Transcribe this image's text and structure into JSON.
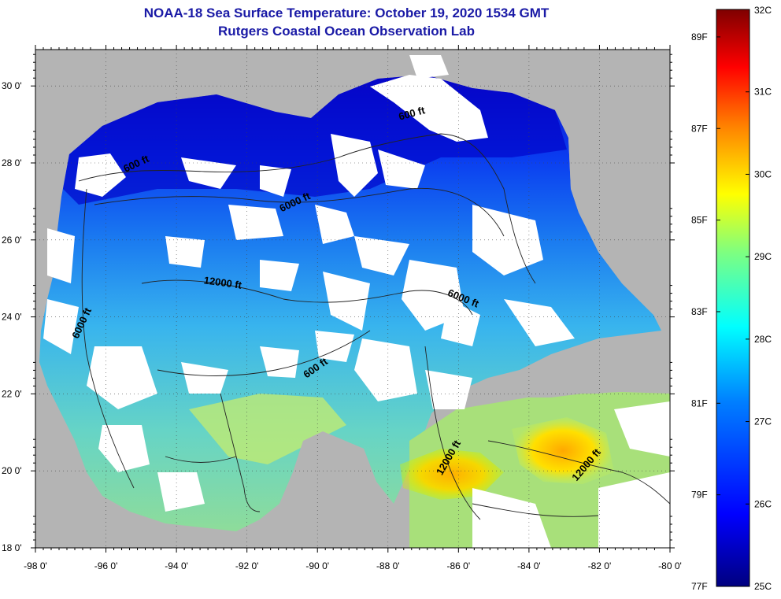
{
  "header": {
    "title": "NOAA-18 Sea Surface Temperature:  October 19, 2020 1534 GMT",
    "subtitle": "Rutgers Coastal Ocean Observation Lab"
  },
  "map": {
    "lon_labels": [
      "-98 0'",
      "-96 0'",
      "-94 0'",
      "-92 0'",
      "-90 0'",
      "-88 0'",
      "-86 0'",
      "-84 0'",
      "-82 0'",
      "-80 0'"
    ],
    "lat_labels": [
      "30 0'",
      "28 0'",
      "26 0'",
      "24 0'",
      "22 0'",
      "20 0'",
      "18 0'"
    ],
    "lon_range": [
      -98,
      -80
    ],
    "lat_range": [
      18,
      31
    ],
    "gridlines": true,
    "land_color": "#b4b4b4",
    "cloud_color": "#ffffff",
    "contour_labels": [
      {
        "text": "600 ft",
        "lon": -95.1,
        "lat": 27.9,
        "angle": -25
      },
      {
        "text": "600 ft",
        "lon": -87.3,
        "lat": 29.2,
        "angle": -15
      },
      {
        "text": "6000 ft",
        "lon": -90.6,
        "lat": 26.9,
        "angle": -25
      },
      {
        "text": "12000 ft",
        "lon": -92.7,
        "lat": 24.8,
        "angle": 8
      },
      {
        "text": "6000 ft",
        "lon": -85.9,
        "lat": 24.4,
        "angle": 22
      },
      {
        "text": "6000 ft",
        "lon": -96.6,
        "lat": 23.8,
        "angle": -65
      },
      {
        "text": "600 ft",
        "lon": -90.0,
        "lat": 22.6,
        "angle": -35
      },
      {
        "text": "12000 ft",
        "lon": -86.2,
        "lat": 20.3,
        "angle": -60
      },
      {
        "text": "12000 ft",
        "lon": -82.3,
        "lat": 20.1,
        "angle": -50
      }
    ]
  },
  "colorbar": {
    "celsius_labels": [
      "32C",
      "31C",
      "30C",
      "29C",
      "28C",
      "27C",
      "26C",
      "25C"
    ],
    "fahrenheit_labels": [
      "89F",
      "87F",
      "85F",
      "83F",
      "81F",
      "79F",
      "77F"
    ],
    "range_c": [
      25,
      32
    ],
    "colors": [
      "#00007f",
      "#0000ff",
      "#007fff",
      "#00ffff",
      "#7fff7f",
      "#ffff00",
      "#ff7f00",
      "#ff0000",
      "#7f0000"
    ]
  }
}
